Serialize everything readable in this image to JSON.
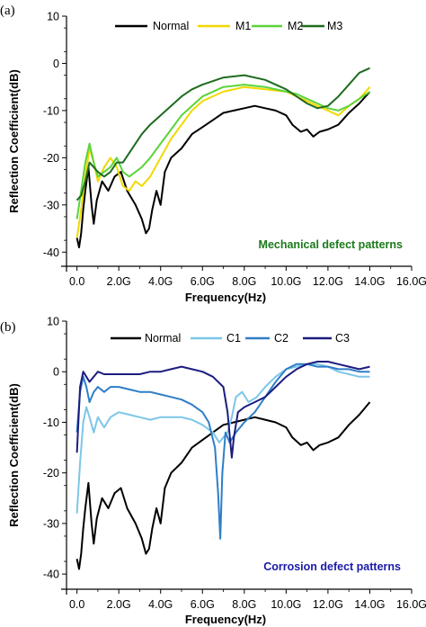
{
  "chart_data": [
    {
      "type": "line",
      "panel_label": "(a)",
      "xlabel": "Frequency(Hz)",
      "ylabel": "Reflection Coefficient(dB)",
      "xlim": [
        -0.5,
        16
      ],
      "ylim": [
        -43,
        10
      ],
      "xticks": [
        0,
        2,
        4,
        6,
        8,
        10,
        12,
        14,
        16
      ],
      "xtick_labels": [
        "0.0",
        "2.0G",
        "4.0G",
        "6.0G",
        "8.0G",
        "10.0G",
        "12.0G",
        "14.0G",
        "16.0G"
      ],
      "yticks": [
        10,
        0,
        -10,
        -20,
        -30,
        -40
      ],
      "ytick_labels": [
        "10",
        "0",
        "-10",
        "-20",
        "-30",
        "-40"
      ],
      "annotation": "Mechanical defect patterns",
      "annotation_color": "#1a7a1a",
      "legend_position": "top-right",
      "series": [
        {
          "name": "Normal",
          "color": "#000000",
          "x": [
            0,
            0.1,
            0.2,
            0.3,
            0.4,
            0.55,
            0.7,
            0.8,
            0.95,
            1.2,
            1.5,
            1.8,
            2.1,
            2.4,
            2.8,
            3.1,
            3.3,
            3.45,
            3.6,
            3.8,
            4.0,
            4.2,
            4.5,
            5.0,
            5.5,
            6.0,
            6.5,
            7.0,
            7.5,
            8.0,
            8.5,
            9.0,
            9.5,
            10.0,
            10.3,
            10.7,
            11.0,
            11.3,
            11.6,
            12.0,
            12.5,
            13.0,
            13.5,
            14.0
          ],
          "y": [
            -37,
            -39,
            -36,
            -31,
            -27,
            -22,
            -30,
            -34,
            -29,
            -25,
            -27,
            -24,
            -23,
            -27,
            -30,
            -33,
            -36,
            -35,
            -31,
            -27,
            -30,
            -23,
            -20,
            -18,
            -15,
            -13.5,
            -12,
            -10.5,
            -10,
            -9.5,
            -9,
            -9.5,
            -10,
            -11,
            -13,
            -14.5,
            -14,
            -15.5,
            -14.5,
            -14,
            -13,
            -10.5,
            -8.5,
            -6
          ]
        },
        {
          "name": "M1",
          "color": "#f2d800",
          "x": [
            0,
            0.2,
            0.4,
            0.6,
            0.8,
            1.0,
            1.3,
            1.6,
            1.9,
            2.2,
            2.5,
            2.8,
            3.1,
            3.5,
            4.0,
            4.5,
            5.0,
            5.5,
            6.0,
            7.0,
            8.0,
            9.0,
            10.0,
            10.5,
            11.0,
            11.5,
            12.0,
            12.5,
            13.0,
            13.5,
            14.0
          ],
          "y": [
            -37,
            -31,
            -24,
            -18,
            -21,
            -25,
            -22,
            -20,
            -22,
            -26,
            -27,
            -25,
            -26,
            -24,
            -20,
            -16,
            -13,
            -10,
            -8,
            -6,
            -5,
            -5.5,
            -6,
            -7,
            -8,
            -9,
            -10,
            -11,
            -9,
            -7.5,
            -5
          ]
        },
        {
          "name": "M2",
          "color": "#5ad43a",
          "x": [
            0,
            0.2,
            0.4,
            0.6,
            0.8,
            1.0,
            1.3,
            1.6,
            1.9,
            2.2,
            2.5,
            2.8,
            3.1,
            3.5,
            4.0,
            4.5,
            5.0,
            5.5,
            6.0,
            7.0,
            8.0,
            9.0,
            10.0,
            10.5,
            11.0,
            11.5,
            12.0,
            12.5,
            13.0,
            13.5,
            14.0
          ],
          "y": [
            -33,
            -27,
            -21,
            -17,
            -21,
            -24,
            -23,
            -22,
            -20,
            -23,
            -24,
            -23,
            -22,
            -20,
            -17,
            -14,
            -11,
            -9,
            -7,
            -5,
            -4.5,
            -5,
            -6,
            -6.5,
            -7.5,
            -8.5,
            -9.5,
            -10,
            -9,
            -7.5,
            -6
          ]
        },
        {
          "name": "M3",
          "color": "#1e6b1e",
          "x": [
            0,
            0.2,
            0.4,
            0.6,
            0.8,
            1.0,
            1.3,
            1.6,
            1.9,
            2.2,
            2.5,
            2.8,
            3.1,
            3.5,
            4.0,
            4.5,
            5.0,
            5.5,
            6.0,
            7.0,
            8.0,
            9.0,
            10.0,
            10.5,
            11.0,
            11.5,
            12.0,
            12.5,
            13.0,
            13.5,
            14.0
          ],
          "y": [
            -29,
            -28,
            -25,
            -21,
            -22,
            -23,
            -24,
            -23,
            -21,
            -21,
            -19,
            -17,
            -15,
            -13,
            -11,
            -9,
            -7,
            -5.5,
            -4.5,
            -3,
            -2.5,
            -3.5,
            -5.5,
            -7,
            -8.5,
            -9.5,
            -9,
            -7,
            -4.5,
            -2,
            -1
          ]
        }
      ]
    },
    {
      "type": "line",
      "panel_label": "(b)",
      "xlabel": "Frequency(Hz)",
      "ylabel": "Reflection Coefficient(dB)",
      "xlim": [
        -0.5,
        16
      ],
      "ylim": [
        -43,
        10
      ],
      "xticks": [
        0,
        2,
        4,
        6,
        8,
        10,
        12,
        14,
        16
      ],
      "xtick_labels": [
        "0.0",
        "2.0G",
        "4.0G",
        "6.0G",
        "8.0G",
        "10.0G",
        "12.0G",
        "14.0G",
        "16.0G"
      ],
      "yticks": [
        10,
        0,
        -10,
        -20,
        -30,
        -40
      ],
      "ytick_labels": [
        "10",
        "0",
        "-10",
        "-20",
        "-30",
        "-40"
      ],
      "annotation": "Corrosion defect patterns",
      "annotation_color": "#1a1aa8",
      "legend_position": "top-right",
      "series": [
        {
          "name": "Normal",
          "color": "#000000",
          "x": [
            0,
            0.1,
            0.2,
            0.3,
            0.4,
            0.55,
            0.7,
            0.8,
            0.95,
            1.2,
            1.5,
            1.8,
            2.1,
            2.4,
            2.8,
            3.1,
            3.3,
            3.45,
            3.6,
            3.8,
            4.0,
            4.2,
            4.5,
            5.0,
            5.5,
            6.0,
            6.5,
            7.0,
            7.5,
            8.0,
            8.5,
            9.0,
            9.5,
            10.0,
            10.3,
            10.7,
            11.0,
            11.3,
            11.6,
            12.0,
            12.5,
            13.0,
            13.5,
            14.0
          ],
          "y": [
            -37,
            -39,
            -36,
            -31,
            -27,
            -22,
            -30,
            -34,
            -29,
            -25,
            -27,
            -24,
            -23,
            -27,
            -30,
            -33,
            -36,
            -35,
            -31,
            -27,
            -30,
            -23,
            -20,
            -18,
            -15,
            -13.5,
            -12,
            -10.5,
            -10,
            -9.5,
            -9,
            -9.5,
            -10,
            -11,
            -13,
            -14.5,
            -14,
            -15.5,
            -14.5,
            -14,
            -13,
            -10.5,
            -8.5,
            -6
          ]
        },
        {
          "name": "C1",
          "color": "#7cc6e8",
          "x": [
            0,
            0.15,
            0.3,
            0.45,
            0.6,
            0.8,
            1.0,
            1.3,
            1.6,
            2.0,
            2.5,
            3.0,
            3.5,
            4.0,
            4.5,
            5.0,
            5.5,
            6.0,
            6.5,
            6.8,
            7.0,
            7.2,
            7.4,
            7.6,
            7.9,
            8.2,
            8.6,
            9.0,
            9.5,
            10.0,
            10.5,
            11.0,
            11.5,
            12.0,
            12.5,
            13.0,
            13.5,
            14.0
          ],
          "y": [
            -28,
            -18,
            -10,
            -7,
            -9,
            -12,
            -9,
            -11,
            -9,
            -8,
            -8.5,
            -9,
            -9.5,
            -9,
            -9,
            -9,
            -9.5,
            -10.5,
            -12,
            -14,
            -13,
            -12,
            -9,
            -5,
            -4,
            -6,
            -5,
            -3,
            -1,
            0.5,
            1,
            1.5,
            1.5,
            1,
            0,
            -0.5,
            -1,
            -1
          ]
        },
        {
          "name": "C2",
          "color": "#2f7ec8",
          "x": [
            0,
            0.15,
            0.3,
            0.45,
            0.6,
            0.8,
            1.0,
            1.3,
            1.6,
            2.0,
            2.5,
            3.0,
            3.5,
            4.0,
            4.5,
            5.0,
            5.5,
            6.0,
            6.3,
            6.6,
            6.75,
            6.85,
            6.95,
            7.1,
            7.3,
            7.6,
            8.0,
            8.5,
            9.0,
            9.5,
            10.0,
            10.5,
            11.0,
            11.5,
            12.0,
            12.5,
            13.0,
            13.5,
            14.0
          ],
          "y": [
            -12,
            -4,
            -1,
            -3,
            -6,
            -4,
            -3,
            -4,
            -3,
            -3,
            -3.5,
            -4,
            -4,
            -4.5,
            -5,
            -5.5,
            -6.5,
            -8,
            -10,
            -15,
            -24,
            -33,
            -20,
            -12,
            -14,
            -12,
            -10,
            -8,
            -5,
            -2,
            0.5,
            1.5,
            1.5,
            1,
            1,
            0.5,
            0.5,
            0,
            0
          ]
        },
        {
          "name": "C3",
          "color": "#1c1c80",
          "x": [
            0,
            0.15,
            0.3,
            0.45,
            0.6,
            0.8,
            1.0,
            1.3,
            1.6,
            2.0,
            2.5,
            3.0,
            3.5,
            4.0,
            4.5,
            5.0,
            5.5,
            6.0,
            6.5,
            7.0,
            7.2,
            7.4,
            7.5,
            7.7,
            8.0,
            8.5,
            9.0,
            9.5,
            10.0,
            10.5,
            11.0,
            11.5,
            12.0,
            12.5,
            13.0,
            13.5,
            14.0
          ],
          "y": [
            -16,
            -3,
            0,
            -1,
            -2,
            -1,
            0,
            -0.5,
            -0.5,
            -0.5,
            -0.5,
            -0.5,
            0,
            0,
            0.5,
            1,
            0.5,
            0,
            -1,
            -3,
            -8,
            -17,
            -13,
            -8,
            -7,
            -6,
            -5,
            -3,
            -1,
            0.5,
            1.5,
            2,
            2,
            1.5,
            1,
            0.5,
            1
          ]
        }
      ]
    }
  ]
}
